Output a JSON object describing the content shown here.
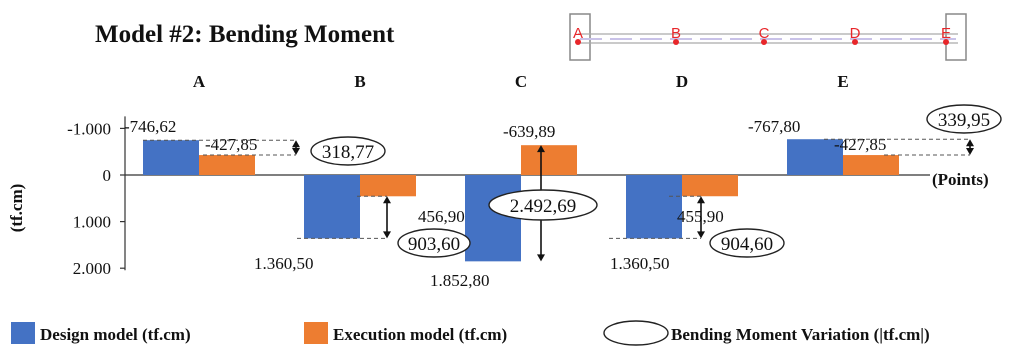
{
  "chart_data": {
    "type": "bar",
    "title": "Model #2: Bending Moment",
    "ylabel": "(tf.cm)",
    "xlabel": "(Points)",
    "categories": [
      "A",
      "B",
      "C",
      "D",
      "E"
    ],
    "ylim": [
      -1000,
      2000
    ],
    "y_inverted": true,
    "yticks": [
      -1000,
      0,
      1000,
      2000
    ],
    "ytick_labels": [
      "-1.000",
      "0",
      "1.000",
      "2.000"
    ],
    "series": [
      {
        "name": "Design model (tf.cm)",
        "color": "#4472c4",
        "values": [
          -746.62,
          1360.5,
          1852.8,
          1360.5,
          -767.8
        ],
        "labels": [
          "-746,62",
          "1.360,50",
          "1.852,80",
          "1.360,50",
          "-767,80"
        ]
      },
      {
        "name": "Execution model (tf.cm)",
        "color": "#ed7d31",
        "values": [
          -427.85,
          456.9,
          -639.89,
          455.9,
          -427.85
        ],
        "labels": [
          "-427,85",
          "456,90",
          "-639,89",
          "455,90",
          "-427,85"
        ]
      }
    ],
    "variation": {
      "name": "Bending Moment Variation (|tf.cm|)",
      "values": [
        318.77,
        903.6,
        2492.69,
        904.6,
        339.95
      ],
      "labels": [
        "318,77",
        "903,60",
        "2.492,69",
        "904,60",
        "339,95"
      ]
    },
    "legend_position": "bottom",
    "grid": false
  },
  "schematic": {
    "points": [
      "A",
      "B",
      "C",
      "D",
      "E"
    ]
  }
}
